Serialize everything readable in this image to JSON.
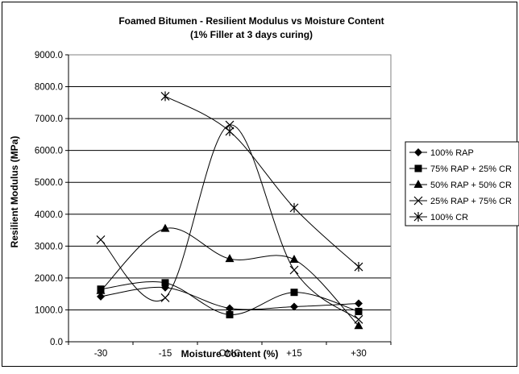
{
  "chart_data": {
    "type": "line",
    "title": "Foamed Bitumen - Resilient Modulus vs Moisture Content",
    "subtitle": "(1% Filler at 3 days curing)",
    "xlabel": "Moisture Content (%)",
    "ylabel": "Resilient Modulus (MPa)",
    "categories": [
      "-30",
      "-15",
      "OMC",
      "+15",
      "+30"
    ],
    "ylim": [
      0,
      9000
    ],
    "yticks": [
      "0.0",
      "1000.0",
      "2000.0",
      "3000.0",
      "4000.0",
      "5000.0",
      "6000.0",
      "7000.0",
      "8000.0",
      "9000.0"
    ],
    "grid": "horizontal",
    "legend_position": "right",
    "smooth": true,
    "series": [
      {
        "name": "100% RAP",
        "marker": "diamond",
        "values": [
          1420,
          1700,
          1050,
          1100,
          1200
        ]
      },
      {
        "name": "75% RAP + 25% CR",
        "marker": "square",
        "values": [
          1650,
          1850,
          850,
          1550,
          950
        ]
      },
      {
        "name": "50% RAP + 50% CR",
        "marker": "triangle",
        "values": [
          1600,
          3550,
          2600,
          2580,
          500
        ]
      },
      {
        "name": "25% RAP + 75% CR",
        "marker": "x",
        "values": [
          3200,
          1380,
          6800,
          2250,
          700
        ]
      },
      {
        "name": "100% CR",
        "marker": "asterisk",
        "values": [
          null,
          7700,
          6600,
          4200,
          2350
        ]
      }
    ]
  }
}
